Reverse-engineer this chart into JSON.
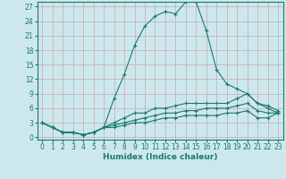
{
  "xlabel": "Humidex (Indice chaleur)",
  "bg_color": "#cce8ec",
  "grid_color": "#b0d4d8",
  "line_color": "#1a7a6e",
  "xlim": [
    -0.5,
    23.5
  ],
  "ylim": [
    -0.5,
    28
  ],
  "xticks": [
    0,
    1,
    2,
    3,
    4,
    5,
    6,
    7,
    8,
    9,
    10,
    11,
    12,
    13,
    14,
    15,
    16,
    17,
    18,
    19,
    20,
    21,
    22,
    23
  ],
  "yticks": [
    0,
    3,
    6,
    9,
    12,
    15,
    18,
    21,
    24,
    27
  ],
  "series": [
    {
      "x": [
        0,
        1,
        2,
        3,
        4,
        5,
        6,
        7,
        8,
        9,
        10,
        11,
        12,
        13,
        14,
        15,
        16,
        17,
        18,
        19,
        20,
        21,
        22,
        23
      ],
      "y": [
        3,
        2,
        1,
        1,
        0.5,
        1,
        2,
        8,
        13,
        19,
        23,
        25,
        26,
        25.5,
        28,
        28,
        22,
        14,
        11,
        10,
        9,
        7,
        6,
        5
      ]
    },
    {
      "x": [
        0,
        1,
        2,
        3,
        4,
        5,
        6,
        7,
        8,
        9,
        10,
        11,
        12,
        13,
        14,
        15,
        16,
        17,
        18,
        19,
        20,
        21,
        22,
        23
      ],
      "y": [
        3,
        2,
        1,
        1,
        0.5,
        1,
        2,
        3,
        4,
        5,
        5,
        6,
        6,
        6.5,
        7,
        7,
        7,
        7,
        7,
        8,
        9,
        7,
        6.5,
        5.5
      ]
    },
    {
      "x": [
        0,
        1,
        2,
        3,
        4,
        5,
        6,
        7,
        8,
        9,
        10,
        11,
        12,
        13,
        14,
        15,
        16,
        17,
        18,
        19,
        20,
        21,
        22,
        23
      ],
      "y": [
        3,
        2,
        1,
        1,
        0.5,
        1,
        2,
        2.5,
        3,
        3.5,
        4,
        4.5,
        5,
        5,
        5.5,
        5.5,
        6,
        6,
        6,
        6.5,
        7,
        5.5,
        5,
        5
      ]
    },
    {
      "x": [
        0,
        1,
        2,
        3,
        4,
        5,
        6,
        7,
        8,
        9,
        10,
        11,
        12,
        13,
        14,
        15,
        16,
        17,
        18,
        19,
        20,
        21,
        22,
        23
      ],
      "y": [
        3,
        2,
        1,
        1,
        0.5,
        1,
        2,
        2,
        2.5,
        3,
        3,
        3.5,
        4,
        4,
        4.5,
        4.5,
        4.5,
        4.5,
        5,
        5,
        5.5,
        4,
        4,
        5
      ]
    }
  ]
}
